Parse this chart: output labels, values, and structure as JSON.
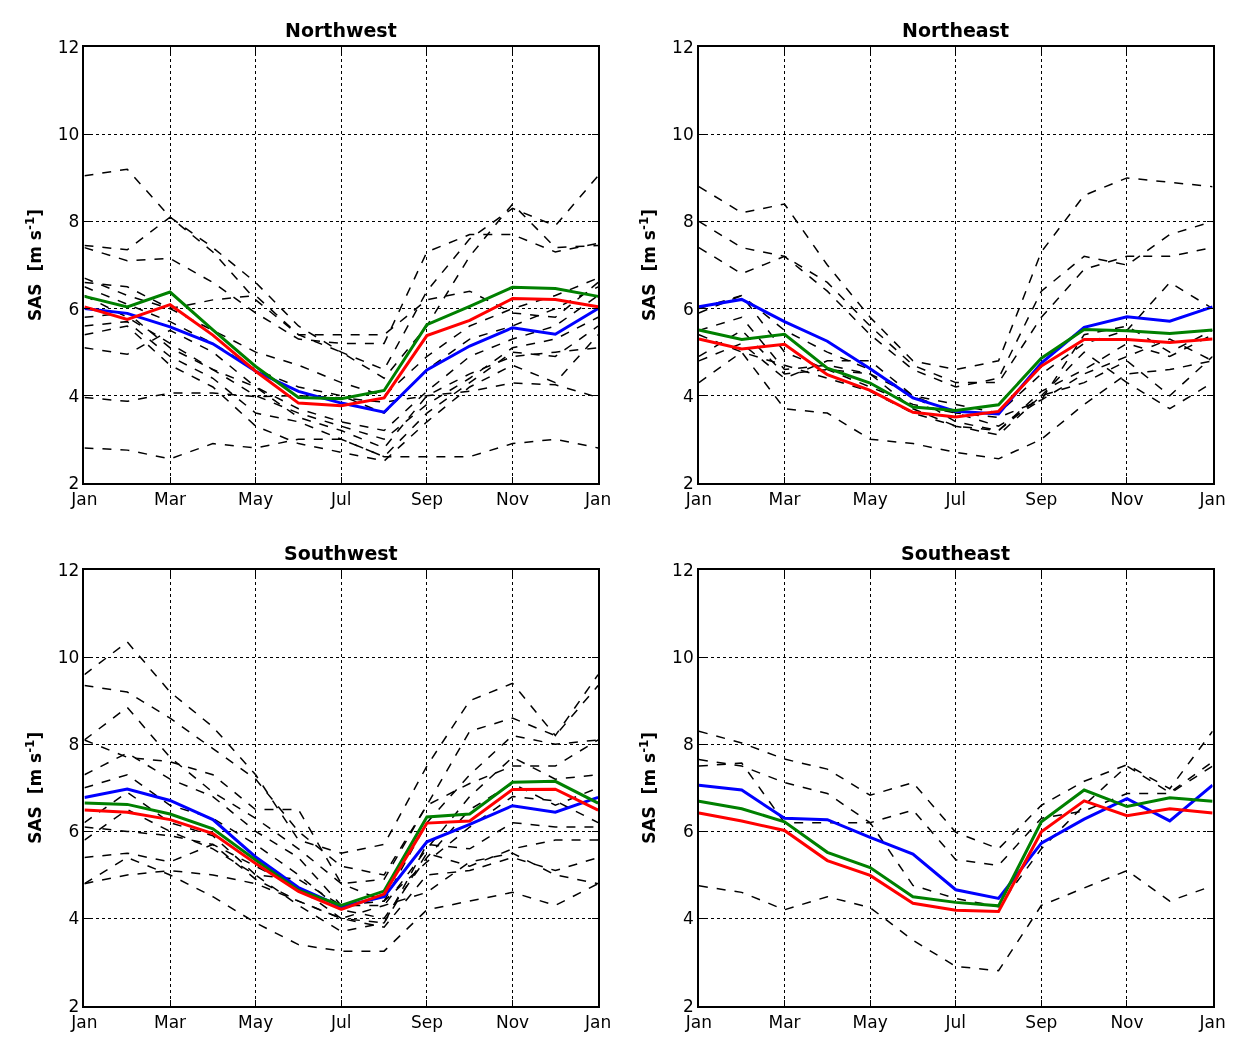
{
  "chart_data": [
    {
      "type": "line",
      "title": "Northwest",
      "ylabel": "SAS  [m s$^{-1}$]",
      "categories": [
        "Jan",
        null,
        "Mar",
        null,
        "May",
        null,
        "Jul",
        null,
        "Sep",
        null,
        "Nov",
        null,
        "Jan"
      ],
      "ylim": [
        2,
        12
      ],
      "yticks": [
        2,
        4,
        6,
        8,
        10,
        12
      ],
      "grid": true,
      "series": [
        {
          "color": "#000000",
          "line_style": "dashed",
          "values": [
            9.05,
            9.2,
            8.1,
            7.4,
            6.6,
            5.6,
            5.0,
            4.6,
            6.4,
            7.6,
            8.3,
            7.9,
            9.05
          ]
        },
        {
          "color": "#000000",
          "line_style": "dashed",
          "values": [
            7.45,
            7.35,
            8.1,
            7.3,
            6.2,
            5.4,
            5.0,
            4.4,
            5.6,
            7.2,
            8.4,
            7.4,
            7.45
          ]
        },
        {
          "color": "#000000",
          "line_style": "dashed",
          "values": [
            7.4,
            7.1,
            7.15,
            6.6,
            5.9,
            5.3,
            5.2,
            5.2,
            7.3,
            7.7,
            7.7,
            7.3,
            7.5
          ]
        },
        {
          "color": "#000000",
          "line_style": "dashed",
          "values": [
            6.6,
            6.5,
            6.0,
            6.2,
            6.3,
            5.4,
            5.4,
            5.4,
            6.2,
            6.4,
            5.9,
            5.8,
            6.6
          ]
        },
        {
          "color": "#000000",
          "line_style": "dashed",
          "values": [
            6.7,
            6.3,
            6.0,
            5.5,
            5.0,
            4.7,
            4.3,
            4.0,
            4.9,
            5.6,
            6.0,
            6.3,
            6.7
          ]
        },
        {
          "color": "#000000",
          "line_style": "dashed",
          "values": [
            6.5,
            6.1,
            5.7,
            5.2,
            4.6,
            4.2,
            4.0,
            3.6,
            4.6,
            5.3,
            5.6,
            6.0,
            6.5
          ]
        },
        {
          "color": "#000000",
          "line_style": "dashed",
          "values": [
            6.3,
            5.8,
            5.2,
            4.6,
            4.2,
            3.7,
            3.4,
            3.2,
            4.1,
            4.9,
            5.3,
            5.6,
            6.3
          ]
        },
        {
          "color": "#000000",
          "line_style": "dashed",
          "values": [
            5.8,
            5.9,
            5.1,
            4.6,
            4.0,
            3.6,
            3.3,
            3.0,
            3.8,
            4.4,
            5.1,
            5.3,
            5.8
          ]
        },
        {
          "color": "#000000",
          "line_style": "dashed",
          "values": [
            5.6,
            5.7,
            4.9,
            4.4,
            3.6,
            3.4,
            3.0,
            2.6,
            3.6,
            4.3,
            5.0,
            4.9,
            5.6
          ]
        },
        {
          "color": "#000000",
          "line_style": "dashed",
          "values": [
            5.4,
            5.6,
            4.7,
            4.2,
            3.3,
            2.9,
            2.7,
            2.5,
            3.4,
            4.2,
            4.7,
            4.3,
            5.4
          ]
        },
        {
          "color": "#000000",
          "line_style": "dashed",
          "values": [
            5.1,
            4.95,
            5.5,
            5.0,
            4.2,
            3.5,
            3.2,
            2.8,
            4.0,
            4.5,
            4.9,
            5.0,
            5.1
          ]
        },
        {
          "color": "#000000",
          "line_style": "dashed",
          "values": [
            3.96,
            3.87,
            4.06,
            4.06,
            3.98,
            4.0,
            3.95,
            3.85,
            4.0,
            4.1,
            4.29,
            4.25,
            3.96
          ]
        },
        {
          "color": "#000000",
          "line_style": "dashed",
          "values": [
            2.8,
            2.75,
            2.55,
            2.9,
            2.8,
            3.0,
            3.0,
            2.6,
            2.6,
            2.6,
            2.9,
            3.0,
            2.8
          ]
        },
        {
          "color": "#0000ff",
          "line_style": "solid",
          "values": [
            6.0,
            5.89,
            5.58,
            5.19,
            4.56,
            4.1,
            3.83,
            3.62,
            4.59,
            5.14,
            5.56,
            5.41,
            6.0
          ]
        },
        {
          "color": "#008000",
          "line_style": "solid",
          "values": [
            6.28,
            6.04,
            6.38,
            5.51,
            4.67,
            3.96,
            3.93,
            4.12,
            5.63,
            6.05,
            6.49,
            6.46,
            6.28
          ]
        },
        {
          "color": "#ff0000",
          "line_style": "solid",
          "values": [
            6.04,
            5.75,
            6.09,
            5.39,
            4.56,
            3.83,
            3.77,
            3.95,
            5.38,
            5.73,
            6.23,
            6.21,
            6.04
          ]
        }
      ]
    },
    {
      "type": "line",
      "title": "Northeast",
      "ylabel": "SAS  [m s$^{-1}$]",
      "categories": [
        "Jan",
        null,
        "Mar",
        null,
        "May",
        null,
        "Jul",
        null,
        "Sep",
        null,
        "Nov",
        null,
        "Jan"
      ],
      "ylim": [
        2,
        12
      ],
      "yticks": [
        2,
        4,
        6,
        8,
        10,
        12
      ],
      "grid": true,
      "series": [
        {
          "color": "#000000",
          "line_style": "dashed",
          "values": [
            8.8,
            8.2,
            8.4,
            7.0,
            5.8,
            4.8,
            4.6,
            4.8,
            7.3,
            8.6,
            9.0,
            8.9,
            8.8
          ]
        },
        {
          "color": "#000000",
          "line_style": "dashed",
          "values": [
            8.0,
            7.4,
            7.2,
            6.4,
            5.4,
            4.6,
            4.2,
            4.4,
            6.4,
            7.2,
            7.0,
            7.7,
            8.0
          ]
        },
        {
          "color": "#000000",
          "line_style": "dashed",
          "values": [
            7.4,
            6.8,
            7.2,
            6.6,
            5.6,
            4.7,
            4.3,
            4.3,
            5.8,
            6.9,
            7.2,
            7.2,
            7.4
          ]
        },
        {
          "color": "#000000",
          "line_style": "dashed",
          "values": [
            6.0,
            6.3,
            5.5,
            5.0,
            4.6,
            4.0,
            3.8,
            3.6,
            4.5,
            5.2,
            5.5,
            6.6,
            6.0
          ]
        },
        {
          "color": "#000000",
          "line_style": "dashed",
          "values": [
            5.9,
            6.3,
            5.0,
            4.6,
            4.2,
            3.8,
            3.6,
            3.3,
            3.9,
            5.4,
            5.6,
            5.0,
            5.5
          ]
        },
        {
          "color": "#000000",
          "line_style": "dashed",
          "values": [
            5.5,
            5.8,
            4.6,
            4.7,
            4.5,
            4.0,
            3.4,
            3.2,
            4.1,
            4.6,
            5.2,
            4.9,
            5.4
          ]
        },
        {
          "color": "#000000",
          "line_style": "dashed",
          "values": [
            5.4,
            5.0,
            4.7,
            4.4,
            4.1,
            3.6,
            3.3,
            3.1,
            4.0,
            4.3,
            4.8,
            4.0,
            4.9
          ]
        },
        {
          "color": "#000000",
          "line_style": "dashed",
          "values": [
            4.9,
            5.5,
            4.5,
            4.6,
            4.5,
            3.7,
            3.3,
            3.2,
            4.0,
            5.0,
            4.3,
            3.7,
            4.3
          ]
        },
        {
          "color": "#000000",
          "line_style": "dashed",
          "values": [
            4.3,
            5.0,
            3.7,
            3.6,
            3.0,
            2.9,
            2.7,
            2.55,
            3.0,
            3.8,
            4.5,
            4.6,
            4.8
          ]
        },
        {
          "color": "#000000",
          "line_style": "dashed",
          "values": [
            4.8,
            5.2,
            4.4,
            4.8,
            4.8,
            4.0,
            3.6,
            3.5,
            3.9,
            4.5,
            4.9,
            5.3,
            4.8
          ]
        },
        {
          "color": "#0000ff",
          "line_style": "solid",
          "values": [
            6.04,
            6.21,
            5.7,
            5.25,
            4.62,
            3.95,
            3.64,
            3.58,
            4.75,
            5.57,
            5.81,
            5.71,
            6.04
          ]
        },
        {
          "color": "#008000",
          "line_style": "solid",
          "values": [
            5.51,
            5.29,
            5.41,
            4.63,
            4.29,
            3.74,
            3.66,
            3.79,
            4.86,
            5.52,
            5.49,
            5.43,
            5.51
          ]
        },
        {
          "color": "#ff0000",
          "line_style": "solid",
          "values": [
            5.3,
            5.07,
            5.18,
            4.48,
            4.12,
            3.62,
            3.51,
            3.64,
            4.68,
            5.29,
            5.29,
            5.22,
            5.3
          ]
        }
      ]
    },
    {
      "type": "line",
      "title": "Southwest",
      "ylabel": "SAS  [m s$^{-1}$]",
      "categories": [
        "Jan",
        null,
        "Mar",
        null,
        "May",
        null,
        "Jul",
        null,
        "Sep",
        null,
        "Nov",
        null,
        "Jan"
      ],
      "ylim": [
        2,
        12
      ],
      "yticks": [
        2,
        4,
        6,
        8,
        10,
        12
      ],
      "grid": true,
      "series": [
        {
          "color": "#000000",
          "line_style": "dashed",
          "values": [
            9.6,
            10.35,
            9.2,
            8.4,
            7.3,
            5.8,
            5.5,
            5.7,
            7.5,
            9.0,
            9.4,
            8.2,
            9.6
          ]
        },
        {
          "color": "#000000",
          "line_style": "dashed",
          "values": [
            9.35,
            9.2,
            8.6,
            7.9,
            7.2,
            6.0,
            5.2,
            5.0,
            6.6,
            8.3,
            8.6,
            8.2,
            9.35
          ]
        },
        {
          "color": "#000000",
          "line_style": "dashed",
          "values": [
            8.1,
            8.85,
            7.7,
            6.9,
            6.3,
            5.6,
            4.8,
            4.4,
            6.2,
            7.3,
            8.2,
            8.0,
            8.1
          ]
        },
        {
          "color": "#000000",
          "line_style": "dashed",
          "values": [
            8.1,
            7.7,
            7.6,
            7.3,
            6.5,
            6.5,
            4.8,
            4.9,
            6.6,
            7.1,
            7.5,
            7.5,
            8.1
          ]
        },
        {
          "color": "#000000",
          "line_style": "dashed",
          "values": [
            7.3,
            7.8,
            7.2,
            6.8,
            6.0,
            5.4,
            4.3,
            4.3,
            5.6,
            6.8,
            7.7,
            7.2,
            7.3
          ]
        },
        {
          "color": "#000000",
          "line_style": "dashed",
          "values": [
            7.0,
            7.3,
            6.6,
            6.3,
            5.7,
            5.0,
            4.2,
            4.0,
            5.4,
            6.5,
            7.1,
            6.6,
            7.0
          ]
        },
        {
          "color": "#000000",
          "line_style": "dashed",
          "values": [
            6.2,
            6.9,
            6.2,
            5.9,
            5.0,
            4.9,
            4.3,
            4.4,
            5.3,
            6.1,
            6.8,
            6.7,
            6.2
          ]
        },
        {
          "color": "#000000",
          "line_style": "dashed",
          "values": [
            6.1,
            6.0,
            5.9,
            5.7,
            5.2,
            4.7,
            4.0,
            3.9,
            5.7,
            5.6,
            6.2,
            6.1,
            6.1
          ]
        },
        {
          "color": "#000000",
          "line_style": "dashed",
          "values": [
            5.8,
            6.5,
            6.0,
            5.6,
            5.0,
            4.3,
            3.7,
            3.9,
            5.5,
            5.2,
            5.6,
            5.8,
            5.8
          ]
        },
        {
          "color": "#000000",
          "line_style": "dashed",
          "values": [
            5.4,
            5.5,
            5.3,
            5.7,
            4.9,
            4.4,
            4.0,
            3.8,
            5.0,
            5.1,
            5.4,
            5.1,
            5.4
          ]
        },
        {
          "color": "#000000",
          "line_style": "dashed",
          "values": [
            4.8,
            5.0,
            5.1,
            5.0,
            4.8,
            4.4,
            4.0,
            4.3,
            4.6,
            5.3,
            5.5,
            5.0,
            4.8
          ]
        },
        {
          "color": "#000000",
          "line_style": "dashed",
          "values": [
            4.8,
            5.4,
            5.0,
            4.5,
            3.9,
            3.4,
            3.25,
            3.25,
            4.2,
            4.4,
            4.6,
            4.3,
            4.8
          ]
        },
        {
          "color": "#0000ff",
          "line_style": "solid",
          "values": [
            6.78,
            6.97,
            6.71,
            6.27,
            5.41,
            4.71,
            4.27,
            4.5,
            5.76,
            6.16,
            6.59,
            6.44,
            6.78
          ]
        },
        {
          "color": "#008000",
          "line_style": "solid",
          "values": [
            6.65,
            6.62,
            6.4,
            6.06,
            5.34,
            4.65,
            4.3,
            4.63,
            6.33,
            6.4,
            7.13,
            7.15,
            6.65
          ]
        },
        {
          "color": "#ff0000",
          "line_style": "solid",
          "values": [
            6.49,
            6.44,
            6.27,
            5.95,
            5.26,
            4.62,
            4.21,
            4.56,
            6.19,
            6.24,
            6.96,
            6.97,
            6.49
          ]
        }
      ]
    },
    {
      "type": "line",
      "title": "Southeast",
      "ylabel": "SAS  [m s$^{-1}$]",
      "categories": [
        "Jan",
        null,
        "Mar",
        null,
        "May",
        null,
        "Jul",
        null,
        "Sep",
        null,
        "Nov",
        null,
        "Jan"
      ],
      "ylim": [
        2,
        12
      ],
      "yticks": [
        2,
        4,
        6,
        8,
        10,
        12
      ],
      "grid": true,
      "series": [
        {
          "color": "#000000",
          "line_style": "dashed",
          "values": [
            8.3,
            8.03,
            7.66,
            7.43,
            6.83,
            7.12,
            5.98,
            5.6,
            6.6,
            7.15,
            7.53,
            6.98,
            8.3
          ]
        },
        {
          "color": "#000000",
          "line_style": "dashed",
          "values": [
            7.65,
            7.5,
            7.12,
            6.87,
            6.2,
            6.49,
            5.35,
            5.22,
            6.3,
            6.47,
            6.87,
            6.87,
            7.5
          ]
        },
        {
          "color": "#000000",
          "line_style": "dashed",
          "values": [
            7.5,
            7.57,
            6.2,
            6.2,
            6.2,
            4.76,
            4.46,
            4.27,
            5.6,
            6.6,
            7.5,
            6.89,
            7.6
          ]
        },
        {
          "color": "#000000",
          "line_style": "dashed",
          "values": [
            4.75,
            4.6,
            4.2,
            4.5,
            4.25,
            3.5,
            2.9,
            2.8,
            4.3,
            4.7,
            5.1,
            4.4,
            4.75
          ]
        },
        {
          "color": "#0000ff",
          "line_style": "solid",
          "values": [
            7.06,
            6.95,
            6.3,
            6.27,
            5.86,
            5.48,
            4.66,
            4.46,
            5.73,
            6.28,
            6.75,
            6.24,
            7.06
          ]
        },
        {
          "color": "#008000",
          "line_style": "solid",
          "values": [
            6.69,
            6.52,
            6.22,
            5.52,
            5.17,
            4.5,
            4.37,
            4.29,
            6.22,
            6.95,
            6.57,
            6.77,
            6.69
          ]
        },
        {
          "color": "#ff0000",
          "line_style": "solid",
          "values": [
            6.42,
            6.24,
            6.02,
            5.33,
            4.99,
            4.35,
            4.19,
            4.16,
            5.99,
            6.7,
            6.36,
            6.52,
            6.42
          ]
        }
      ]
    }
  ]
}
